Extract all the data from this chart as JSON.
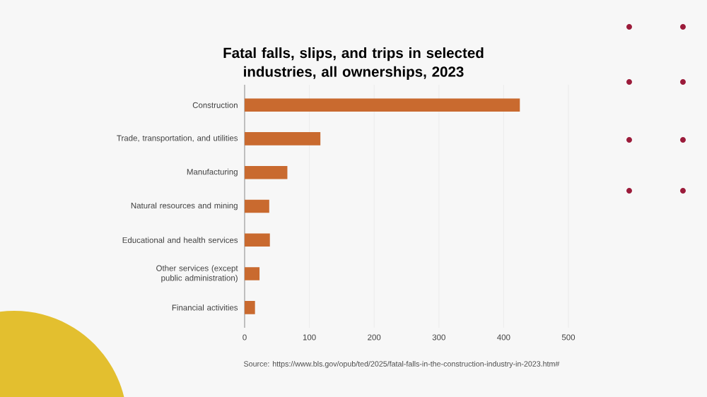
{
  "chart_data": {
    "type": "bar",
    "orientation": "horizontal",
    "title": "Fatal falls, slips, and trips in selected industries, all ownerships, 2023",
    "categories": [
      "Construction",
      "Trade, transportation, and utilities",
      "Manufacturing",
      "Natural resources and mining",
      "Educational and health services",
      "Other services (except public administration)",
      "Financial activities"
    ],
    "values": [
      425,
      117,
      66,
      38,
      39,
      23,
      16
    ],
    "color": "#c96a2f",
    "xlim": [
      0,
      500
    ],
    "xticks": [
      0,
      100,
      200,
      300,
      400,
      500
    ],
    "grid": "x",
    "annotations": [
      "Source: https://www.bls.gov/opub/ted/2025/fatal-falls-in-the-construction-industry-in-2023.htm#"
    ]
  }
}
